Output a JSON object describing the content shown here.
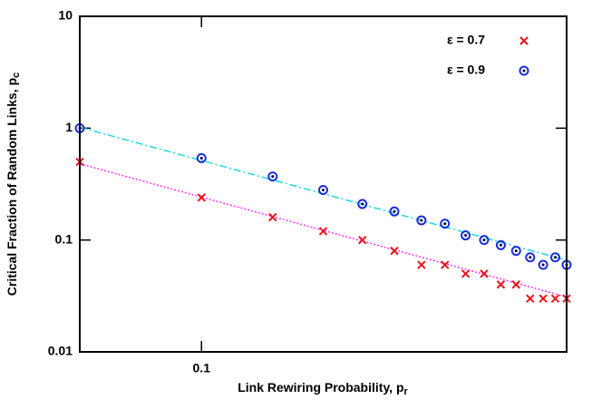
{
  "chart_data": {
    "type": "scatter",
    "x_label": "Link Rewiring Probability, p",
    "x_label_sub": "r",
    "y_label": "Critical Fraction of Random Links, p",
    "y_label_sub": "c",
    "x": [
      0.05,
      0.1,
      0.15,
      0.2,
      0.25,
      0.3,
      0.35,
      0.4,
      0.45,
      0.5,
      0.55,
      0.6,
      0.65,
      0.7,
      0.75,
      0.8
    ],
    "series": [
      {
        "name": "ε = 0.7",
        "color": "#e8141c",
        "marker": "x",
        "values": [
          0.5,
          0.24,
          0.16,
          0.12,
          0.1,
          0.08,
          0.06,
          0.06,
          0.05,
          0.05,
          0.04,
          0.04,
          0.03,
          0.03,
          0.03,
          0.03
        ]
      },
      {
        "name": "ε = 0.9",
        "color": "#1a2fd8",
        "marker": "circle",
        "values": [
          1.0,
          0.54,
          0.37,
          0.28,
          0.21,
          0.18,
          0.15,
          0.14,
          0.11,
          0.1,
          0.09,
          0.08,
          0.07,
          0.06,
          0.07,
          0.06
        ]
      }
    ],
    "fits": [
      {
        "color": "#ff33ff",
        "dash": "2,2",
        "x": [
          0.05,
          0.8
        ],
        "values": [
          0.48,
          0.031
        ]
      },
      {
        "color": "#22d8e0",
        "dash": "8,3,2,3",
        "x": [
          0.05,
          0.8
        ],
        "values": [
          1.02,
          0.066
        ]
      }
    ],
    "xscale": "log",
    "yscale": "log",
    "xlim": [
      0.05,
      0.8
    ],
    "ylim": [
      0.01,
      10
    ],
    "xticks": [
      0.1
    ],
    "yticks": [
      0.01,
      0.1,
      1,
      10
    ],
    "legend": "top-right"
  }
}
